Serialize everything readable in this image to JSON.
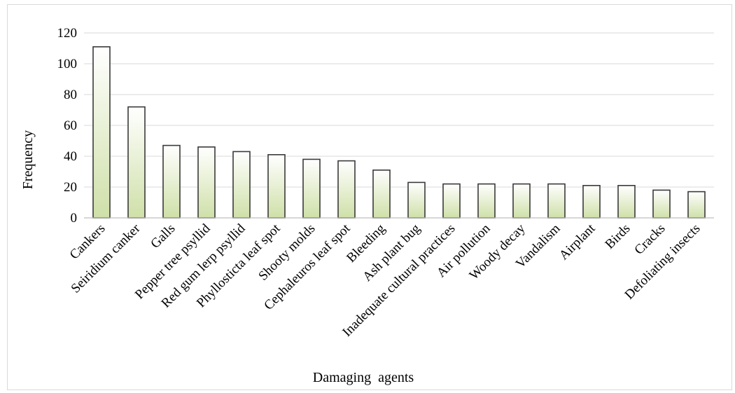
{
  "chart_data": {
    "type": "bar",
    "title": "",
    "xlabel": "Damaging  agents",
    "ylabel": "Frequency",
    "ylim": [
      0,
      120
    ],
    "yticks": [
      0,
      20,
      40,
      60,
      80,
      100,
      120
    ],
    "grid": true,
    "legend": "none",
    "categories": [
      "Cankers",
      "Seiridium canker",
      "Galls",
      "Pepper tree psyllid",
      "Red gum lerp psyllid",
      "Phyllosticta leaf spot",
      "Shooty molds",
      "Cephaleuros leaf spot",
      "Bleeding",
      "Ash plant bug",
      "Inadequate cultural practices",
      "Air pollution",
      "Woody decay",
      "Vandalism",
      "Airplant",
      "Birds",
      "Cracks",
      "Defoliating insects"
    ],
    "values": [
      111,
      72,
      47,
      46,
      43,
      41,
      38,
      37,
      31,
      23,
      22,
      22,
      22,
      22,
      21,
      21,
      18,
      17
    ],
    "colors": {
      "bar_top": "#ffffff",
      "bar_bottom": "#cfe0a8",
      "bar_stroke": "#3a3a3a",
      "grid": "#d9d9d9",
      "axis": "#bfbfbf"
    }
  }
}
